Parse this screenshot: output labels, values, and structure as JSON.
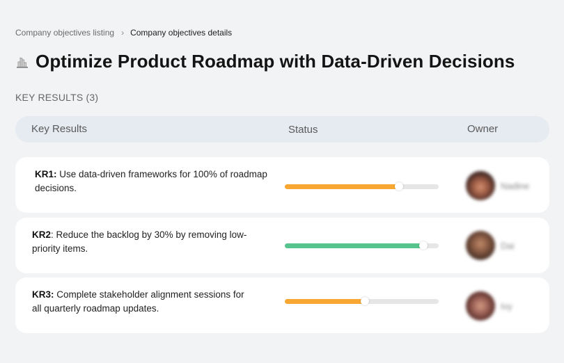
{
  "breadcrumb": {
    "items": [
      "Company objectives listing",
      "Company objectives details"
    ],
    "separator": "›"
  },
  "objective": {
    "icon": "cityscape-icon",
    "title": "Optimize Product Roadmap with Data-Driven Decisions"
  },
  "key_results_section": {
    "label": "KEY RESULTS (3)"
  },
  "table": {
    "headers": {
      "key_results": "Key Results",
      "status": "Status",
      "owner": "Owner"
    },
    "rows": [
      {
        "id": "KR1",
        "id_label": "KR1:",
        "id_suffix": "",
        "text": " Use data-driven frameworks for 100% of roadmap decisions.",
        "progress_pct": 74,
        "bar_color": "#f8a832",
        "owner": "Nadine",
        "avatar_gradient": "radial-gradient(circle at 50% 55%, #d6906e 0%, #9a5a44 35%, #3c2420 70%, #1e1414 100%)"
      },
      {
        "id": "KR2",
        "id_label": "KR2",
        "id_suffix": ":",
        "text": " Reduce the backlog by 30% by removing low-priority items.",
        "progress_pct": 90,
        "bar_color": "#56c48c",
        "owner": "Dai",
        "avatar_gradient": "radial-gradient(circle at 50% 45%, #c08a6a 0%, #8a5c44 35%, #4a3026 70%, #2a1c18 100%)"
      },
      {
        "id": "KR3",
        "id_label": "KR3:",
        "id_suffix": "",
        "text": " Complete stakeholder alignment sessions for all quarterly roadmap updates.",
        "progress_pct": 52,
        "bar_color": "#f8a832",
        "owner": "Ivy",
        "avatar_gradient": "radial-gradient(circle at 50% 50%, #d49a84 0%, #a0665a 35%, #5a2e2a 70%, #2c1a1a 100%)"
      }
    ]
  }
}
